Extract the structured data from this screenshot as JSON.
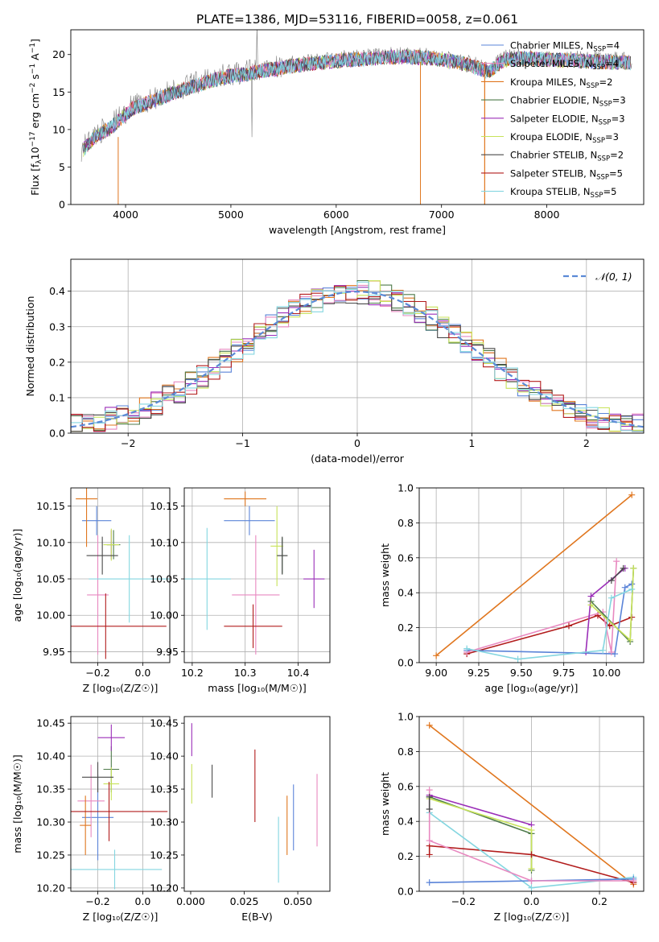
{
  "figure": {
    "title": "PLATE=1386, MJD=53116, FIBERID=0058, z=0.061"
  },
  "colors": {
    "chabrier_miles": "#5b84d8",
    "salpeter_miles": "#e889c0",
    "kroupa_miles": "#e0761e",
    "chabrier_elodie": "#4e7a4a",
    "salpeter_elodie": "#9b2fb8",
    "kroupa_elodie": "#c8e35a",
    "chabrier_stelib": "#4a4a4a",
    "salpeter_stelib": "#b21c1c",
    "kroupa_stelib": "#84d6e0",
    "data_line": "#7f7f7f",
    "normal_line": "#5b8ad6"
  },
  "chart_data": [
    {
      "id": "spectrum",
      "type": "line",
      "xlabel": "wavelength [Angstrom, rest frame]",
      "ylabel": "Flux [f_λ10^-17 erg cm^-2 s^-1 A^-1]",
      "xlim": [
        3480,
        8920
      ],
      "ylim": [
        0,
        23.3
      ],
      "xticks": [
        4000,
        5000,
        6000,
        7000,
        8000
      ],
      "yticks": [
        0,
        5,
        10,
        15,
        20
      ],
      "grid": false,
      "legend_position": "right",
      "continuum": {
        "x": [
          3560,
          3700,
          3850,
          3950,
          4050,
          4200,
          4350,
          4500,
          4700,
          4900,
          5100,
          5300,
          5500,
          5700,
          5900,
          6100,
          6300,
          6500,
          6700,
          6900,
          7100,
          7300,
          7450,
          7600,
          7800,
          8000,
          8200,
          8400,
          8600,
          8800
        ],
        "y": [
          7.0,
          9.2,
          10.5,
          11.6,
          13.0,
          13.8,
          14.6,
          15.4,
          16.3,
          17.2,
          17.6,
          18.1,
          18.6,
          19.0,
          19.3,
          19.6,
          19.7,
          19.9,
          20.0,
          19.8,
          19.4,
          18.7,
          18.0,
          19.6,
          19.8,
          19.6,
          19.5,
          19.4,
          19.3,
          19.2
        ]
      },
      "series": [
        {
          "label": "Chabrier MILES, N",
          "nssp": "=4"
        },
        {
          "label": "Salpeter MILES, N",
          "nssp": "=4"
        },
        {
          "label": "Kroupa MILES, N",
          "nssp": "=2"
        },
        {
          "label": "Chabrier ELODIE, N",
          "nssp": "=3"
        },
        {
          "label": "Salpeter ELODIE, N",
          "nssp": "=3"
        },
        {
          "label": "Kroupa ELODIE, N",
          "nssp": "=3"
        },
        {
          "label": "Chabrier STELIB, N",
          "nssp": "=2"
        },
        {
          "label": "Salpeter STELIB, N",
          "nssp": "=5"
        },
        {
          "label": "Kroupa STELIB, N",
          "nssp": "=5"
        }
      ],
      "nssp_subscript": "SSP"
    },
    {
      "id": "residuals",
      "type": "line",
      "xlabel": "(data-model)/error",
      "ylabel": "Normed distribution",
      "xlim": [
        -2.5,
        2.5
      ],
      "ylim": [
        0,
        0.49
      ],
      "xticks": [
        -2,
        -1,
        0,
        1,
        2
      ],
      "yticks": [
        0.0,
        0.1,
        0.2,
        0.3,
        0.4
      ],
      "grid": true,
      "legend_position": "top-right",
      "legend_label": "𝒩(0, 1)",
      "bin_width": 0.1
    },
    {
      "id": "age_vs_z",
      "type": "scatter",
      "xlabel": "Z [log₁₀(Z/Z☉)]",
      "ylabel": "age  [log₁₀(age/yr)]",
      "xlim": [
        -0.32,
        0.12
      ],
      "ylim": [
        9.935,
        10.175
      ],
      "xticks": [
        -0.2,
        0.0
      ],
      "yticks": [
        9.95,
        10.0,
        10.05,
        10.1,
        10.15
      ],
      "grid": true,
      "points": [
        {
          "key": "chabrier_miles",
          "x": -0.205,
          "y": 10.13,
          "xerr": 0.065,
          "yerr": 0.02
        },
        {
          "key": "salpeter_miles",
          "x": -0.2,
          "y": 10.028,
          "xerr": 0.048,
          "yerr": 0.082
        },
        {
          "key": "kroupa_miles",
          "x": -0.25,
          "y": 10.16,
          "xerr": 0.048,
          "yerr": 0.066
        },
        {
          "key": "chabrier_elodie",
          "x": -0.13,
          "y": 10.097,
          "xerr": 0.03,
          "yerr": 0.02
        },
        {
          "key": "salpeter_elodie",
          "x": -0.14,
          "y": 10.097,
          "xerr": 0.02,
          "yerr": 0.02
        },
        {
          "key": "kroupa_elodie",
          "x": -0.14,
          "y": 10.097,
          "xerr": 0.035,
          "yerr": 0.022
        },
        {
          "key": "chabrier_stelib",
          "x": -0.18,
          "y": 10.082,
          "xerr": 0.07,
          "yerr": 0.026
        },
        {
          "key": "salpeter_stelib",
          "x": -0.165,
          "y": 9.985,
          "xerr": 0.27,
          "yerr": 0.045
        },
        {
          "key": "kroupa_stelib",
          "x": -0.06,
          "y": 10.05,
          "xerr": 0.18,
          "yerr": 0.06
        }
      ]
    },
    {
      "id": "age_vs_mass",
      "type": "scatter",
      "xlabel": "mass [log₁₀(M/M☉)]",
      "ylabel": "",
      "xlim": [
        10.185,
        10.46
      ],
      "ylim": [
        9.935,
        10.175
      ],
      "xticks": [
        10.2,
        10.3,
        10.4
      ],
      "yticks": [
        9.95,
        10.0,
        10.05,
        10.1,
        10.15
      ],
      "grid": true,
      "points": [
        {
          "key": "chabrier_miles",
          "x": 10.308,
          "y": 10.13,
          "xerr": 0.048,
          "yerr": 0.02
        },
        {
          "key": "salpeter_miles",
          "x": 10.32,
          "y": 10.028,
          "xerr": 0.045,
          "yerr": 0.082
        },
        {
          "key": "kroupa_miles",
          "x": 10.3,
          "y": 10.16,
          "xerr": 0.04,
          "yerr": 0.01
        },
        {
          "key": "chabrier_elodie",
          "x": 10.37,
          "y": 10.082,
          "xerr": 0.01,
          "yerr": 0.025
        },
        {
          "key": "salpeter_elodie",
          "x": 10.43,
          "y": 10.05,
          "xerr": 0.02,
          "yerr": 0.04
        },
        {
          "key": "kroupa_elodie",
          "x": 10.36,
          "y": 10.095,
          "xerr": 0.012,
          "yerr": 0.055
        },
        {
          "key": "chabrier_stelib",
          "x": 10.37,
          "y": 10.082,
          "xerr": 0.01,
          "yerr": 0.026
        },
        {
          "key": "salpeter_stelib",
          "x": 10.315,
          "y": 9.985,
          "xerr": 0.055,
          "yerr": 0.03
        },
        {
          "key": "kroupa_stelib",
          "x": 10.228,
          "y": 10.05,
          "xerr": 0.045,
          "yerr": 0.07
        }
      ]
    },
    {
      "id": "mass_weight_vs_age",
      "type": "line",
      "xlabel": "age  [log₁₀(age/yr)]",
      "ylabel": "mass weight",
      "xlim": [
        8.9,
        10.22
      ],
      "ylim": [
        0,
        1.0
      ],
      "xticks": [
        9.0,
        9.25,
        9.5,
        9.75,
        10.0
      ],
      "yticks": [
        0.0,
        0.2,
        0.4,
        0.6,
        0.8,
        1.0
      ],
      "grid": true,
      "series": [
        {
          "key": "kroupa_miles",
          "x": [
            9.0,
            10.15
          ],
          "y": [
            0.04,
            0.96
          ]
        },
        {
          "key": "salpeter_stelib",
          "x": [
            9.18,
            9.78,
            9.95,
            10.02,
            10.15
          ],
          "y": [
            0.05,
            0.21,
            0.27,
            0.21,
            0.26
          ]
        },
        {
          "key": "chabrier_miles",
          "x": [
            9.18,
            10.05,
            10.11,
            10.15
          ],
          "y": [
            0.07,
            0.05,
            0.43,
            0.45
          ]
        },
        {
          "key": "salpeter_miles",
          "x": [
            9.18,
            9.98,
            10.03,
            10.06
          ],
          "y": [
            0.06,
            0.29,
            0.06,
            0.58
          ]
        },
        {
          "key": "salpeter_elodie",
          "x": [
            9.88,
            9.91,
            10.11
          ],
          "y": [
            0.06,
            0.38,
            0.54
          ]
        },
        {
          "key": "chabrier_elodie",
          "x": [
            9.91,
            10.14,
            10.16
          ],
          "y": [
            0.35,
            0.12,
            0.54
          ]
        },
        {
          "key": "kroupa_elodie",
          "x": [
            9.91,
            10.14,
            10.16
          ],
          "y": [
            0.33,
            0.13,
            0.54
          ]
        },
        {
          "key": "kroupa_stelib",
          "x": [
            9.18,
            9.48,
            9.98,
            10.03,
            10.15
          ],
          "y": [
            0.08,
            0.02,
            0.07,
            0.37,
            0.42
          ]
        },
        {
          "key": "chabrier_stelib",
          "x": [
            10.03,
            10.1
          ],
          "y": [
            0.47,
            0.54
          ]
        }
      ]
    },
    {
      "id": "mass_vs_z",
      "type": "scatter",
      "xlabel": "Z [log₁₀(Z/Z☉)]",
      "ylabel": "mass [log₁₀(M/M☉)]",
      "xlim": [
        -0.32,
        0.12
      ],
      "ylim": [
        10.195,
        10.46
      ],
      "xticks": [
        -0.2,
        0.0
      ],
      "yticks": [
        10.2,
        10.25,
        10.3,
        10.35,
        10.4,
        10.45
      ],
      "grid": true,
      "points": [
        {
          "key": "chabrier_miles",
          "x": -0.2,
          "y": 10.307,
          "xerr": 0.07,
          "yerr": 0.065
        },
        {
          "key": "salpeter_miles",
          "x": -0.23,
          "y": 10.332,
          "xerr": 0.06,
          "yerr": 0.055
        },
        {
          "key": "kroupa_miles",
          "x": -0.255,
          "y": 10.295,
          "xerr": 0.025,
          "yerr": 0.045
        },
        {
          "key": "chabrier_elodie",
          "x": -0.14,
          "y": 10.38,
          "xerr": 0.035,
          "yerr": 0.035
        },
        {
          "key": "salpeter_elodie",
          "x": -0.14,
          "y": 10.428,
          "xerr": 0.06,
          "yerr": 0.02
        },
        {
          "key": "kroupa_elodie",
          "x": -0.14,
          "y": 10.358,
          "xerr": 0.035,
          "yerr": 0.025
        },
        {
          "key": "chabrier_stelib",
          "x": -0.2,
          "y": 10.368,
          "xerr": 0.07,
          "yerr": 0.023
        },
        {
          "key": "salpeter_stelib",
          "x": -0.15,
          "y": 10.316,
          "xerr": 0.26,
          "yerr": 0.045
        },
        {
          "key": "kroupa_stelib",
          "x": -0.125,
          "y": 10.228,
          "xerr": 0.21,
          "yerr": 0.03
        }
      ]
    },
    {
      "id": "mass_vs_ebv",
      "type": "scatter",
      "xlabel": "E(B-V)",
      "ylabel": "",
      "xlim": [
        -0.003,
        0.065
      ],
      "ylim": [
        10.195,
        10.46
      ],
      "xticks": [
        0.0,
        0.025,
        0.05
      ],
      "yticks": [
        10.2,
        10.25,
        10.3,
        10.35,
        10.4,
        10.45
      ],
      "grid": false,
      "points": [
        {
          "key": "chabrier_miles",
          "x": 0.048,
          "y": 10.307,
          "xerr": 0,
          "yerr": 0.05
        },
        {
          "key": "salpeter_miles",
          "x": 0.059,
          "y": 10.318,
          "xerr": 0,
          "yerr": 0.055
        },
        {
          "key": "kroupa_miles",
          "x": 0.045,
          "y": 10.295,
          "xerr": 0,
          "yerr": 0.045
        },
        {
          "key": "salpeter_elodie",
          "x": 0.0005,
          "y": 10.425,
          "xerr": 0,
          "yerr": 0.025
        },
        {
          "key": "kroupa_elodie",
          "x": 0.0005,
          "y": 10.358,
          "xerr": 0,
          "yerr": 0.03
        },
        {
          "key": "chabrier_stelib",
          "x": 0.01,
          "y": 10.362,
          "xerr": 0,
          "yerr": 0.025
        },
        {
          "key": "salpeter_stelib",
          "x": 0.03,
          "y": 10.355,
          "xerr": 0,
          "yerr": 0.055
        },
        {
          "key": "kroupa_stelib",
          "x": 0.041,
          "y": 10.258,
          "xerr": 0,
          "yerr": 0.05
        }
      ]
    },
    {
      "id": "mass_weight_vs_z",
      "type": "line",
      "xlabel": "Z [log₁₀(Z/Z☉)]",
      "ylabel": "mass weight",
      "xlim": [
        -0.33,
        0.33
      ],
      "ylim": [
        0,
        1.0
      ],
      "xticks": [
        -0.2,
        0.0,
        0.2
      ],
      "yticks": [
        0.0,
        0.2,
        0.4,
        0.6,
        0.8,
        1.0
      ],
      "grid": true,
      "series": [
        {
          "key": "kroupa_miles",
          "x": [
            -0.3,
            0.3
          ],
          "y": [
            0.95,
            0.04
          ]
        },
        {
          "key": "salpeter_elodie",
          "x": [
            -0.3,
            0.0
          ],
          "y": [
            0.55,
            0.38
          ]
        },
        {
          "key": "chabrier_elodie",
          "x": [
            -0.3,
            0.0,
            0.0
          ],
          "y": [
            0.54,
            0.33,
            0.12
          ]
        },
        {
          "key": "kroupa_elodie",
          "x": [
            -0.3,
            0.0,
            0.0
          ],
          "y": [
            0.53,
            0.35,
            0.13
          ]
        },
        {
          "key": "salpeter_stelib",
          "x": [
            -0.3,
            -0.3,
            0.0,
            0.3
          ],
          "y": [
            0.21,
            0.26,
            0.21,
            0.05
          ]
        },
        {
          "key": "kroupa_stelib",
          "x": [
            -0.3,
            0.0,
            0.3
          ],
          "y": [
            0.45,
            0.02,
            0.08
          ]
        },
        {
          "key": "chabrier_miles",
          "x": [
            -0.3,
            0.0,
            0.3
          ],
          "y": [
            0.05,
            0.06,
            0.07
          ]
        },
        {
          "key": "salpeter_miles",
          "x": [
            -0.3,
            -0.3,
            0.0,
            0.3
          ],
          "y": [
            0.58,
            0.29,
            0.06,
            0.06
          ]
        },
        {
          "key": "chabrier_stelib",
          "x": [
            -0.3,
            -0.3
          ],
          "y": [
            0.47,
            0.54
          ]
        }
      ]
    }
  ]
}
